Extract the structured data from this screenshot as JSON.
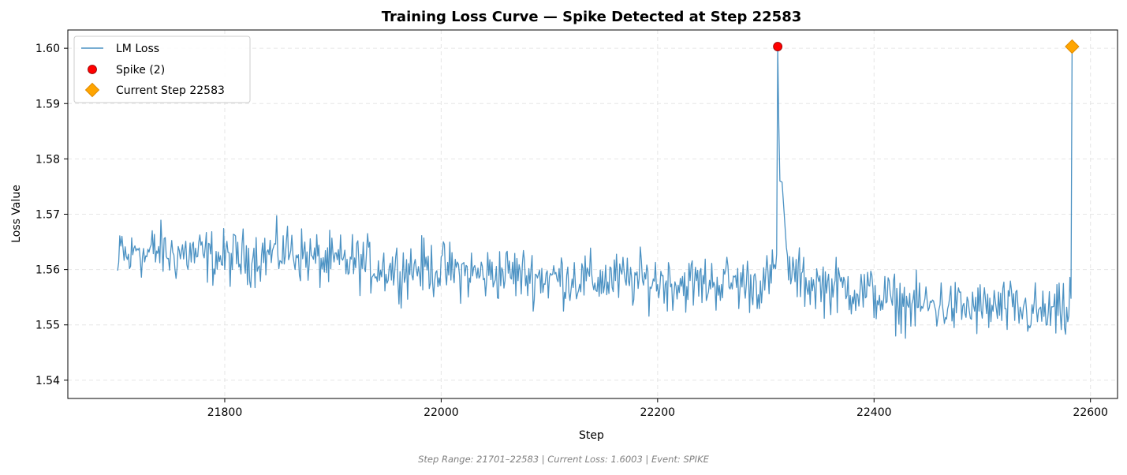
{
  "chart_data": {
    "type": "line",
    "title": "Training Loss Curve — Spike Detected at Step 22583",
    "xlabel": "Step",
    "ylabel": "Loss Value",
    "xlim": [
      21655,
      22625
    ],
    "ylim": [
      1.5367,
      1.6033
    ],
    "x_ticks": [
      21800,
      22000,
      22200,
      22400,
      22600
    ],
    "y_ticks": [
      1.54,
      1.55,
      1.56,
      1.57,
      1.58,
      1.59,
      1.6
    ],
    "x_tick_labels": [
      "21800",
      "22000",
      "22200",
      "22400",
      "22600"
    ],
    "y_tick_labels": [
      "1.54",
      "1.55",
      "1.56",
      "1.57",
      "1.58",
      "1.59",
      "1.60"
    ],
    "grid": true,
    "legend_position": "upper-left",
    "series": [
      {
        "name": "LM Loss",
        "color": "#1f77b4",
        "x_start": 21701,
        "x_end": 22583,
        "anchors": [
          [
            21701,
            1.5598
          ],
          [
            21705,
            1.564
          ],
          [
            21710,
            1.5615
          ],
          [
            21715,
            1.5625
          ],
          [
            21720,
            1.565
          ],
          [
            21725,
            1.562
          ],
          [
            21730,
            1.563
          ],
          [
            21740,
            1.5635
          ],
          [
            21750,
            1.5625
          ],
          [
            21760,
            1.563
          ],
          [
            21780,
            1.5625
          ],
          [
            21800,
            1.562
          ],
          [
            21820,
            1.5622
          ],
          [
            21840,
            1.5628
          ],
          [
            21860,
            1.5635
          ],
          [
            21880,
            1.562
          ],
          [
            21900,
            1.561
          ],
          [
            21920,
            1.5615
          ],
          [
            21940,
            1.5605
          ],
          [
            21960,
            1.56
          ],
          [
            21980,
            1.5605
          ],
          [
            22000,
            1.56
          ],
          [
            22020,
            1.5595
          ],
          [
            22040,
            1.559
          ],
          [
            22060,
            1.5595
          ],
          [
            22080,
            1.559
          ],
          [
            22100,
            1.5585
          ],
          [
            22120,
            1.5585
          ],
          [
            22140,
            1.558
          ],
          [
            22160,
            1.5582
          ],
          [
            22180,
            1.558
          ],
          [
            22200,
            1.558
          ],
          [
            22220,
            1.5575
          ],
          [
            22240,
            1.5575
          ],
          [
            22260,
            1.5578
          ],
          [
            22280,
            1.5575
          ],
          [
            22300,
            1.5575
          ],
          [
            22310,
            1.56
          ],
          [
            22311,
            1.6003
          ],
          [
            22312,
            1.586
          ],
          [
            22313,
            1.576
          ],
          [
            22315,
            1.5758
          ],
          [
            22317,
            1.57
          ],
          [
            22319,
            1.564
          ],
          [
            22321,
            1.561
          ],
          [
            22325,
            1.559
          ],
          [
            22340,
            1.5575
          ],
          [
            22360,
            1.557
          ],
          [
            22380,
            1.5565
          ],
          [
            22400,
            1.5555
          ],
          [
            22420,
            1.554
          ],
          [
            22440,
            1.5535
          ],
          [
            22460,
            1.5535
          ],
          [
            22480,
            1.553
          ],
          [
            22500,
            1.553
          ],
          [
            22520,
            1.553
          ],
          [
            22540,
            1.5525
          ],
          [
            22560,
            1.552
          ],
          [
            22575,
            1.552
          ],
          [
            22580,
            1.552
          ],
          [
            22581,
            1.5555
          ],
          [
            22582,
            1.555
          ],
          [
            22583,
            1.6003
          ]
        ],
        "noise_amplitude": 0.0055,
        "noise_free_steps": [
          22311,
          22312,
          22313,
          22583
        ]
      },
      {
        "name": "Spike (2)",
        "type": "scatter",
        "marker": "circle",
        "color": "#ff0000",
        "points": [
          [
            22311,
            1.6003
          ]
        ]
      },
      {
        "name": "Current Step 22583",
        "type": "scatter",
        "marker": "diamond",
        "color": "#ffa500",
        "points": [
          [
            22583,
            1.6003
          ]
        ]
      }
    ]
  },
  "footer": {
    "text": "Step Range: 21701–22583 | Current Loss: 1.6003 | Event: SPIKE"
  }
}
